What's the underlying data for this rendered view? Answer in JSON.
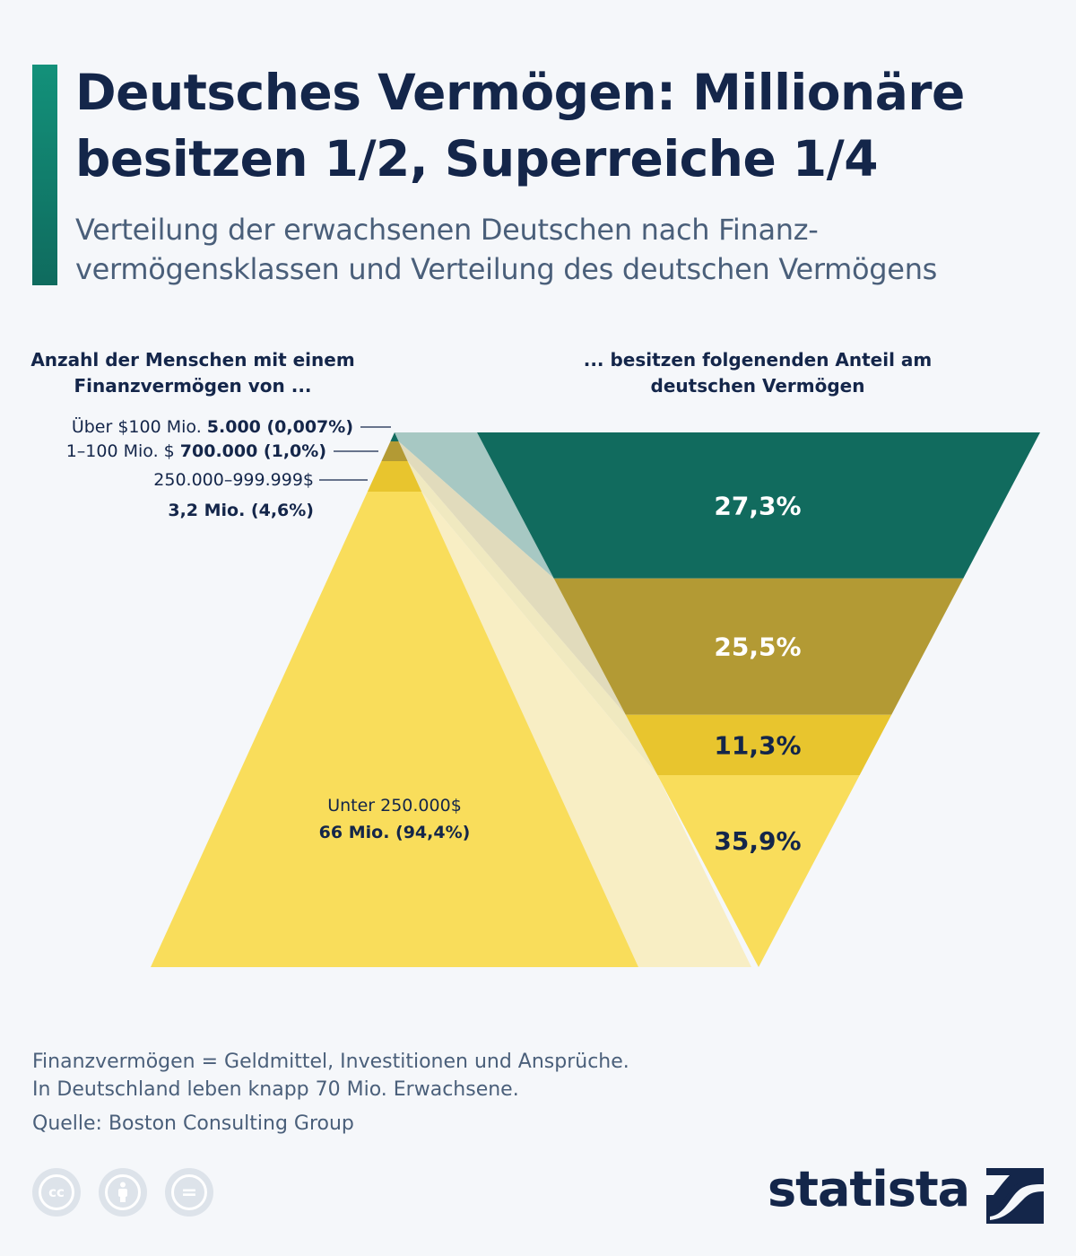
{
  "header": {
    "title": "Deutsches Vermögen: Millionäre besitzen 1/2, Superreiche 1/4",
    "subtitle": "Verteilung der erwachsenen Deutschen nach Finanz-vermögensklassen und Verteilung des deutschen Vermögens"
  },
  "columns": {
    "left_heading": "Anzahl der Menschen mit einem Finanzvermögen von ...",
    "right_heading": "... besitzen folgenenden Anteil am deutschen Vermögen"
  },
  "chart_data": {
    "type": "pyramid-funnel",
    "title": "",
    "classes": [
      {
        "label": "Über $100 Mio.",
        "people": "5.000 (0,007%)",
        "people_count": 5000,
        "people_pct": 0.007,
        "wealth_share_label": "27,3%",
        "wealth_share": 27.3,
        "color": "#116b5e",
        "label_color": "#ffffff"
      },
      {
        "label": "1–100 Mio. $",
        "people": "700.000 (1,0%)",
        "people_count": 700000,
        "people_pct": 1.0,
        "wealth_share_label": "25,5%",
        "wealth_share": 25.5,
        "color": "#b39a34",
        "label_color": "#ffffff"
      },
      {
        "label": "250.000–999.999$",
        "people": "3,2 Mio. (4,6%)",
        "people_count": 3200000,
        "people_pct": 4.6,
        "wealth_share_label": "11,3%",
        "wealth_share": 11.3,
        "color": "#e8c52e",
        "label_color": "#14264a"
      },
      {
        "label": "Unter 250.000$",
        "people": "66 Mio. (94,4%)",
        "people_count": 66000000,
        "people_pct": 94.4,
        "wealth_share_label": "35,9%",
        "wealth_share": 35.9,
        "color": "#f9dd5b",
        "label_color": "#14264a"
      }
    ]
  },
  "footer": {
    "note1": "Finanzvermögen = Geldmittel, Investitionen und Ansprüche.",
    "note2": "In Deutschland leben knapp 70 Mio. Erwachsene.",
    "source": "Quelle: Boston Consulting Group",
    "brand": "statista",
    "license_icons": [
      "cc-icon",
      "attribution-icon",
      "no-derivatives-icon"
    ],
    "icon_labels": {
      "cc": "cc",
      "nd": "="
    }
  }
}
